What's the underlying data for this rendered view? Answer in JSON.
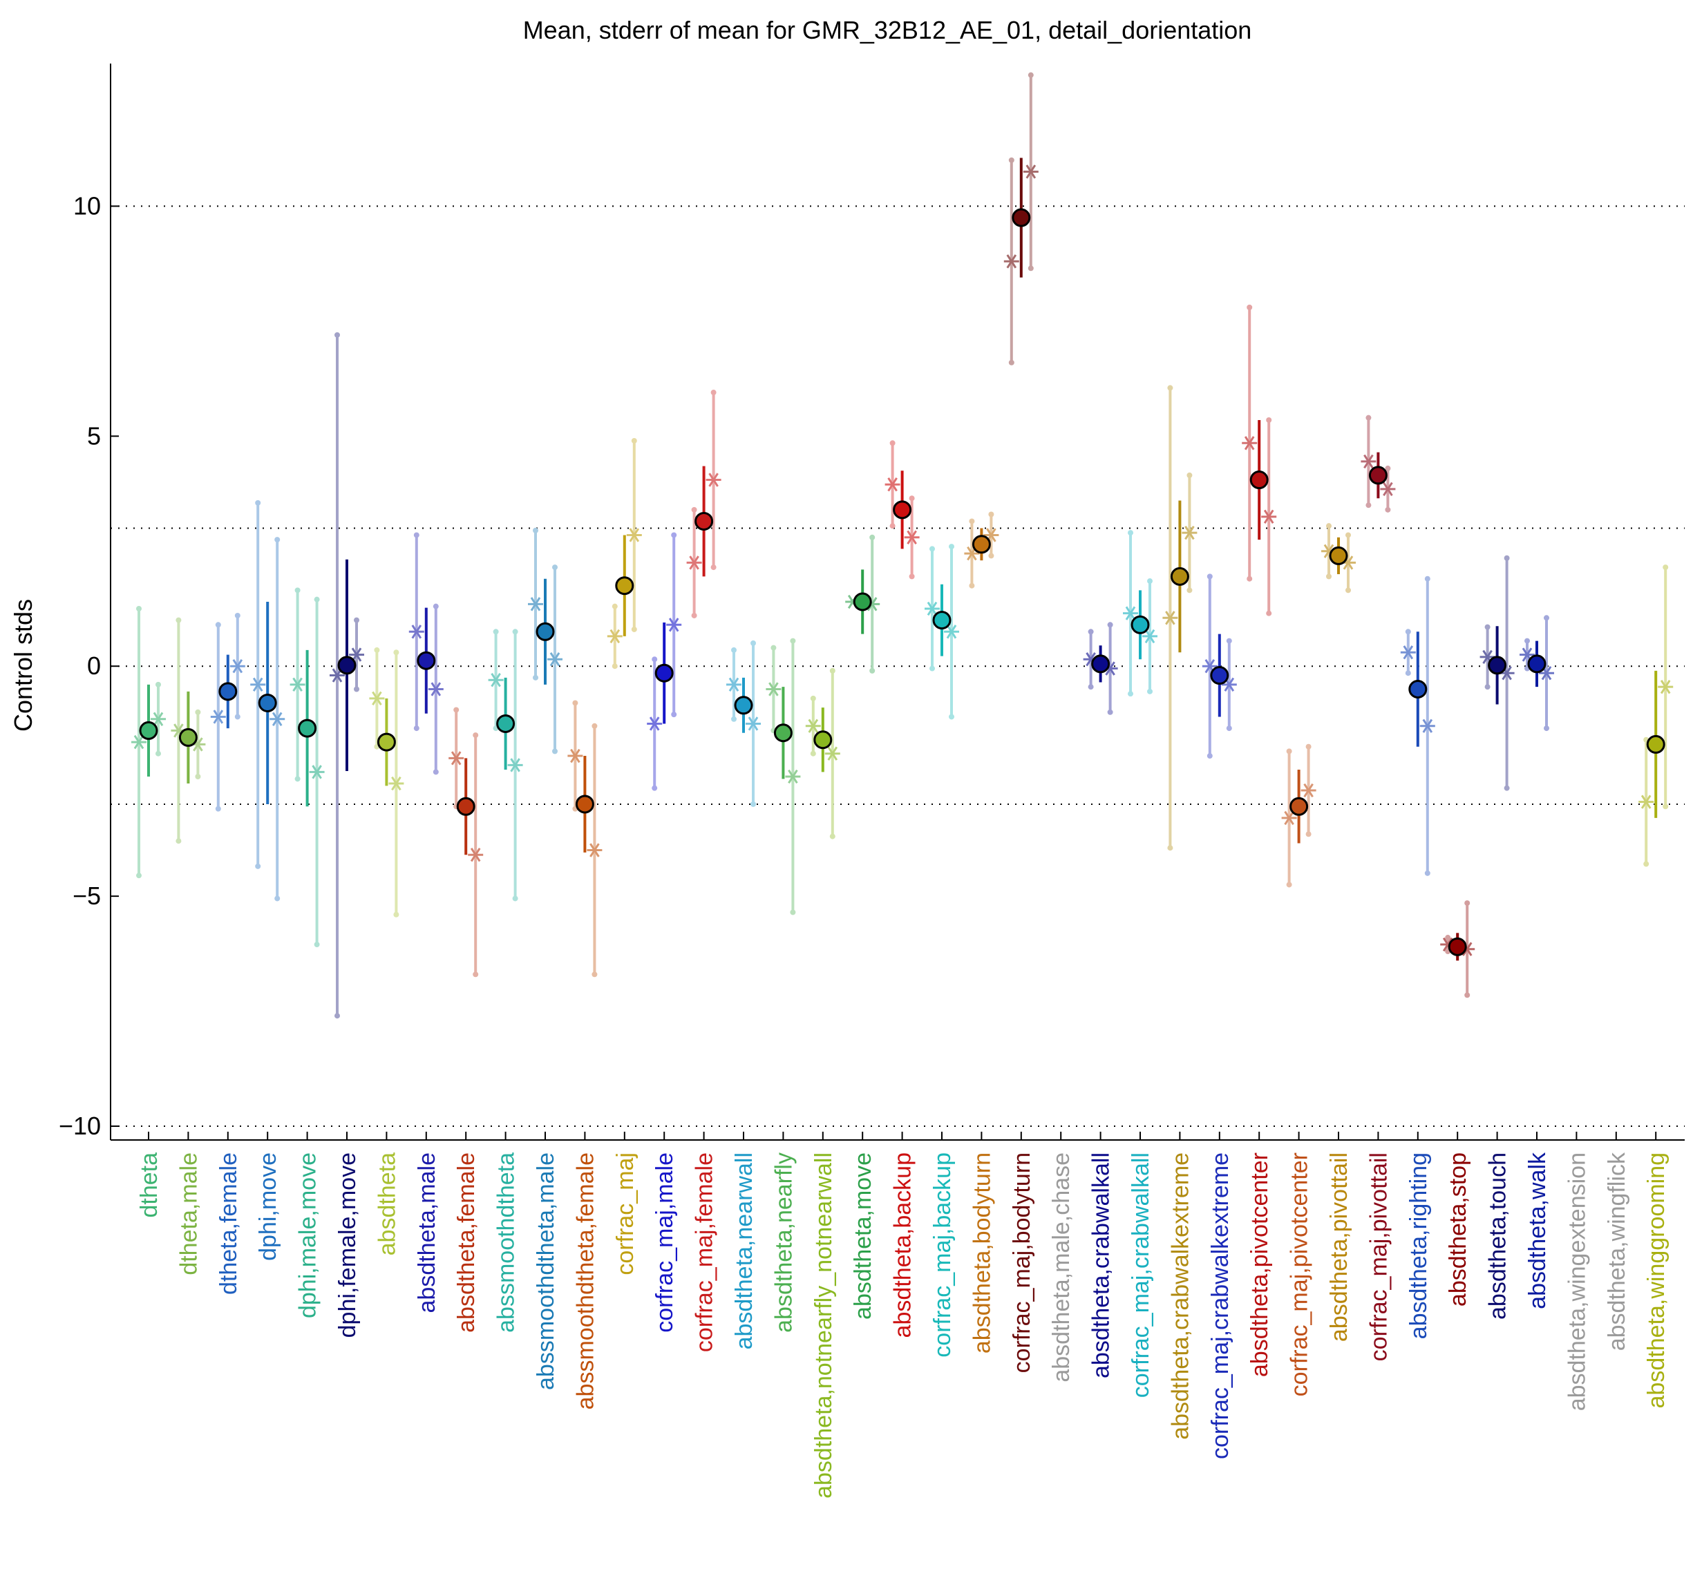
{
  "chart_data": {
    "type": "scatter",
    "title": "Mean, stderr of mean for GMR_32B12_AE_01, detail_dorientation",
    "xlabel": "",
    "ylabel": "Control stds",
    "ylim": [
      -10.3,
      13.1
    ],
    "yticks": [
      10,
      5,
      0,
      -5,
      -10
    ],
    "ytick_labels": [
      "10",
      "5",
      "0",
      "−5",
      "−10"
    ],
    "hlines_dotted": [
      10,
      3,
      0,
      -3,
      -10
    ],
    "grid": false,
    "legend": "none",
    "categories": [
      {
        "label": "dtheta",
        "color": "#3cb371",
        "mean": -1.4,
        "err": 1.0,
        "left": -1.65,
        "left_err": 2.9,
        "right": -1.15,
        "right_err": 0.75
      },
      {
        "label": "dtheta,male",
        "color": "#7cb342",
        "mean": -1.55,
        "err": 1.0,
        "left": -1.4,
        "left_err": 2.4,
        "right": -1.7,
        "right_err": 0.7
      },
      {
        "label": "dtheta,female",
        "color": "#1f5fbf",
        "mean": -0.55,
        "err": 0.8,
        "left": -1.1,
        "left_err": 2.0,
        "right": 0.0,
        "right_err": 1.1
      },
      {
        "label": "dphi,move",
        "color": "#1e6fbf",
        "mean": -0.8,
        "err": 2.2,
        "left": -0.4,
        "left_err": 3.95,
        "right": -1.15,
        "right_err": 3.9
      },
      {
        "label": "dphi,male,move",
        "color": "#2bb08a",
        "mean": -1.35,
        "err": 1.7,
        "left": -0.4,
        "left_err": 2.05,
        "right": -2.3,
        "right_err": 3.75
      },
      {
        "label": "dphi,female,move",
        "color": "#0a0a6e",
        "mean": 0.02,
        "err": 2.3,
        "left": -0.2,
        "left_err": 7.4,
        "right": 0.25,
        "right_err": 0.75
      },
      {
        "label": "absdtheta",
        "color": "#a8c030",
        "mean": -1.65,
        "err": 0.95,
        "left": -0.7,
        "left_err": 1.05,
        "right": -2.55,
        "right_err": 2.85
      },
      {
        "label": "absdtheta,male",
        "color": "#1a1aaa",
        "mean": 0.12,
        "err": 1.15,
        "left": 0.75,
        "left_err": 2.1,
        "right": -0.5,
        "right_err": 1.8
      },
      {
        "label": "absdtheta,female",
        "color": "#b83010",
        "mean": -3.05,
        "err": 1.05,
        "left": -2.0,
        "left_err": 1.05,
        "right": -4.1,
        "right_err": 2.6
      },
      {
        "label": "abssmoothdtheta",
        "color": "#26b0a0",
        "mean": -1.25,
        "err": 1.0,
        "left": -0.3,
        "left_err": 1.05,
        "right": -2.15,
        "right_err": 2.9
      },
      {
        "label": "abssmoothdtheta,male",
        "color": "#1a7ab5",
        "mean": 0.75,
        "err": 1.15,
        "left": 1.35,
        "left_err": 1.6,
        "right": 0.15,
        "right_err": 2.0
      },
      {
        "label": "abssmoothdtheta,female",
        "color": "#c0500a",
        "mean": -3.0,
        "err": 1.05,
        "left": -1.95,
        "left_err": 1.15,
        "right": -4.0,
        "right_err": 2.7
      },
      {
        "label": "corfrac_maj",
        "color": "#c0a010",
        "mean": 1.75,
        "err": 1.1,
        "left": 0.65,
        "left_err": 0.65,
        "right": 2.85,
        "right_err": 2.05
      },
      {
        "label": "corfrac_maj,male",
        "color": "#1515c8",
        "mean": -0.15,
        "err": 1.1,
        "left": -1.25,
        "left_err": 1.4,
        "right": 0.9,
        "right_err": 1.95
      },
      {
        "label": "corfrac_maj,female",
        "color": "#c81a1a",
        "mean": 3.15,
        "err": 1.2,
        "left": 2.25,
        "left_err": 1.15,
        "right": 4.05,
        "right_err": 1.9
      },
      {
        "label": "absdtheta,nearwall",
        "color": "#1e9ac8",
        "mean": -0.85,
        "err": 0.6,
        "left": -0.4,
        "left_err": 0.75,
        "right": -1.25,
        "right_err": 1.75
      },
      {
        "label": "absdtheta,nearfly",
        "color": "#4caf50",
        "mean": -1.45,
        "err": 1.0,
        "left": -0.5,
        "left_err": 0.9,
        "right": -2.4,
        "right_err": 2.95
      },
      {
        "label": "absdtheta,notnearfly_notnearwall",
        "color": "#8ab820",
        "mean": -1.6,
        "err": 0.7,
        "left": -1.3,
        "left_err": 0.6,
        "right": -1.9,
        "right_err": 1.8
      },
      {
        "label": "absdtheta,move",
        "color": "#2ca04a",
        "mean": 1.4,
        "err": 0.7,
        "left": 1.4,
        "left_err": 0.0,
        "right": 1.35,
        "right_err": 1.45
      },
      {
        "label": "absdtheta,backup",
        "color": "#cc1010",
        "mean": 3.4,
        "err": 0.85,
        "left": 3.95,
        "left_err": 0.9,
        "right": 2.8,
        "right_err": 0.85
      },
      {
        "label": "corfrac_maj,backup",
        "color": "#18b8b8",
        "mean": 1.0,
        "err": 0.78,
        "left": 1.25,
        "left_err": 1.3,
        "right": 0.75,
        "right_err": 1.85
      },
      {
        "label": "absdtheta,bodyturn",
        "color": "#c07010",
        "mean": 2.65,
        "err": 0.35,
        "left": 2.45,
        "left_err": 0.7,
        "right": 2.85,
        "right_err": 0.45
      },
      {
        "label": "corfrac_maj,bodyturn",
        "color": "#6b0a0a",
        "mean": 9.75,
        "err": 1.3,
        "left": 8.8,
        "left_err": 2.2,
        "right": 10.75,
        "right_err": 2.1
      },
      {
        "label": "absdtheta,male,chase",
        "color": "#9a9a9a",
        "mean": null,
        "err": null,
        "left": null,
        "left_err": null,
        "right": null,
        "right_err": null
      },
      {
        "label": "absdtheta,crabwalkall",
        "color": "#0a0a8a",
        "mean": 0.05,
        "err": 0.4,
        "left": 0.15,
        "left_err": 0.6,
        "right": -0.05,
        "right_err": 0.95
      },
      {
        "label": "corfrac_maj,crabwalkall",
        "color": "#18b0c0",
        "mean": 0.9,
        "err": 0.75,
        "left": 1.15,
        "left_err": 1.75,
        "right": 0.65,
        "right_err": 1.2
      },
      {
        "label": "absdtheta,crabwalkextreme",
        "color": "#b08a10",
        "mean": 1.95,
        "err": 1.65,
        "left": 1.05,
        "left_err": 5.0,
        "right": 2.9,
        "right_err": 1.25
      },
      {
        "label": "corfrac_maj,crabwalkextreme",
        "color": "#1a2ab8",
        "mean": -0.2,
        "err": 0.9,
        "left": 0.0,
        "left_err": 1.95,
        "right": -0.4,
        "right_err": 0.95
      },
      {
        "label": "absdtheta,pivotcenter",
        "color": "#b81010",
        "mean": 4.05,
        "err": 1.3,
        "left": 4.85,
        "left_err": 2.95,
        "right": 3.25,
        "right_err": 2.1
      },
      {
        "label": "corfrac_maj,pivotcenter",
        "color": "#c05018",
        "mean": -3.05,
        "err": 0.8,
        "left": -3.3,
        "left_err": 1.45,
        "right": -2.7,
        "right_err": 0.95
      },
      {
        "label": "absdtheta,pivottail",
        "color": "#b8860b",
        "mean": 2.4,
        "err": 0.4,
        "left": 2.5,
        "left_err": 0.55,
        "right": 2.25,
        "right_err": 0.6
      },
      {
        "label": "corfrac_maj,pivottail",
        "color": "#8b0a1a",
        "mean": 4.15,
        "err": 0.5,
        "left": 4.45,
        "left_err": 0.95,
        "right": 3.85,
        "right_err": 0.45
      },
      {
        "label": "absdtheta,righting",
        "color": "#1a4ab8",
        "mean": -0.5,
        "err": 1.25,
        "left": 0.3,
        "left_err": 0.45,
        "right": -1.3,
        "right_err": 3.2
      },
      {
        "label": "absdtheta,stop",
        "color": "#8b0000",
        "mean": -6.1,
        "err": 0.3,
        "left": -6.05,
        "left_err": 0.15,
        "right": -6.15,
        "right_err": 1.0
      },
      {
        "label": "absdtheta,touch",
        "color": "#0a0a6e",
        "mean": 0.02,
        "err": 0.85,
        "left": 0.2,
        "left_err": 0.65,
        "right": -0.15,
        "right_err": 2.5
      },
      {
        "label": "absdtheta,walk",
        "color": "#0a1aa0",
        "mean": 0.05,
        "err": 0.5,
        "left": 0.25,
        "left_err": 0.3,
        "right": -0.15,
        "right_err": 1.2
      },
      {
        "label": "absdtheta,wingextension",
        "color": "#9a9a9a",
        "mean": null,
        "err": null,
        "left": null,
        "left_err": null,
        "right": null,
        "right_err": null
      },
      {
        "label": "absdtheta,wingflick",
        "color": "#9a9a9a",
        "mean": null,
        "err": null,
        "left": null,
        "left_err": null,
        "right": null,
        "right_err": null
      },
      {
        "label": "absdtheta,winggrooming",
        "color": "#a8b010",
        "mean": -1.7,
        "err": 1.6,
        "left": -2.95,
        "left_err": 1.35,
        "right": -0.45,
        "right_err": 2.6
      }
    ]
  }
}
